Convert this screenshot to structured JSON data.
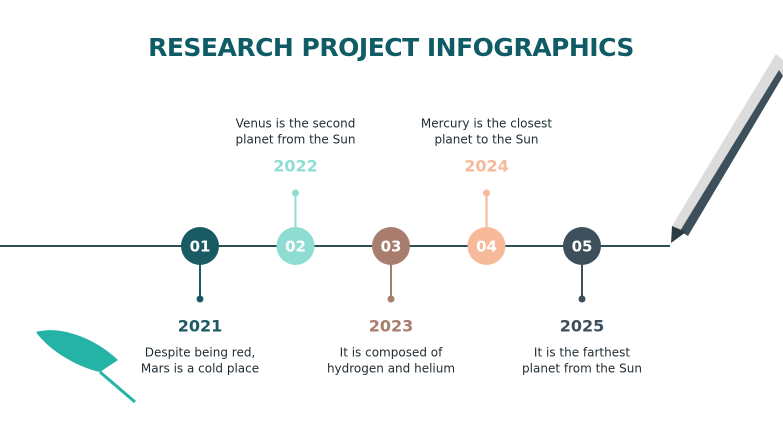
{
  "header": {
    "title": "RESEARCH PROJECT INFOGRAPHICS"
  },
  "items": [
    {
      "number": "01",
      "year": "2021",
      "lines": [
        "Despite being red,",
        "Mars is a cold place"
      ]
    },
    {
      "number": "02",
      "year": "2022",
      "lines": [
        "Venus is the second",
        "planet from the Sun"
      ]
    },
    {
      "number": "03",
      "year": "2023",
      "lines": [
        "It is composed of",
        "hydrogen and helium"
      ]
    },
    {
      "number": "04",
      "year": "2024",
      "lines": [
        "Mercury is the closest",
        "planet to the Sun"
      ]
    },
    {
      "number": "05",
      "year": "2025",
      "lines": [
        "It is the farthest",
        "planet from the Sun"
      ]
    }
  ]
}
